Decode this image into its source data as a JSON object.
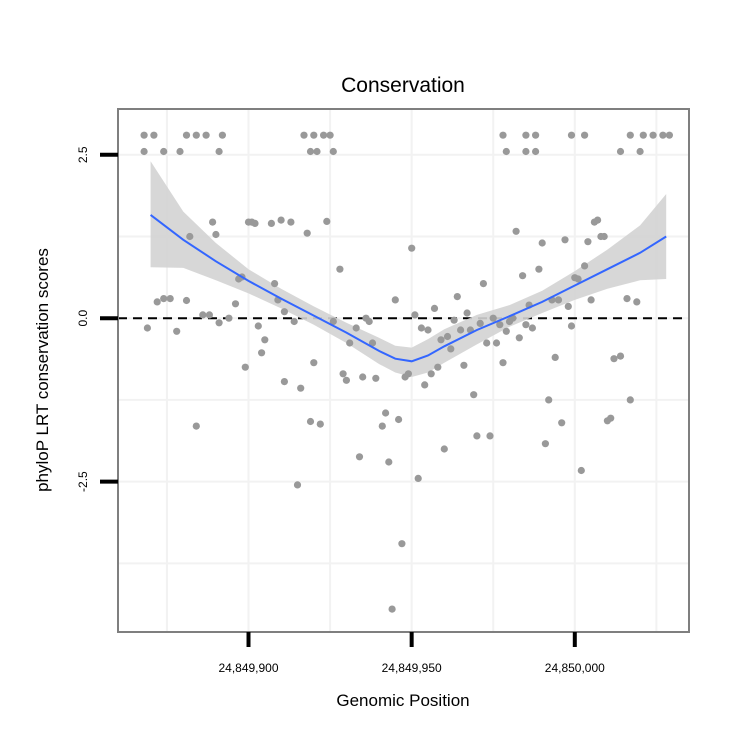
{
  "chart_data": {
    "type": "scatter",
    "title": "Conservation",
    "xlabel": "Genomic Position",
    "ylabel": "phyloP LRT conservation scores",
    "xlim": [
      24849860,
      24850035
    ],
    "ylim": [
      -4.8,
      3.2
    ],
    "x_ticks": [
      {
        "value": 24849900,
        "label": "24,849,900"
      },
      {
        "value": 24849950,
        "label": "24,849,950"
      },
      {
        "value": 24850000,
        "label": "24,850,000"
      }
    ],
    "y_ticks": [
      {
        "value": 2.5,
        "label": "2.5"
      },
      {
        "value": 0.0,
        "label": "0.0"
      },
      {
        "value": -2.5,
        "label": "-2.5"
      }
    ],
    "reference_line": {
      "y": 0.0,
      "style": "dashed"
    },
    "grid": true,
    "colors": {
      "points": "#999999",
      "smooth_line": "#3366ff",
      "confidence_band": "#d3d3d3",
      "panel_border": "#7f7f7f",
      "grid": "#f2f2f2"
    },
    "smooth": {
      "x": [
        24849870,
        24849880,
        24849890,
        24849900,
        24849910,
        24849920,
        24849930,
        24849940,
        24849945,
        24849950,
        24849955,
        24849960,
        24849970,
        24849980,
        24849990,
        24850000,
        24850010,
        24850020,
        24850028
      ],
      "y": [
        1.58,
        1.2,
        0.87,
        0.57,
        0.3,
        0.04,
        -0.22,
        -0.5,
        -0.62,
        -0.66,
        -0.57,
        -0.43,
        -0.18,
        0.03,
        0.25,
        0.5,
        0.75,
        1.0,
        1.25
      ],
      "lower": [
        0.78,
        0.77,
        0.58,
        0.38,
        0.15,
        -0.1,
        -0.38,
        -0.7,
        -0.83,
        -0.9,
        -0.83,
        -0.68,
        -0.4,
        -0.13,
        0.08,
        0.28,
        0.45,
        0.58,
        0.6
      ],
      "upper": [
        2.4,
        1.63,
        1.15,
        0.75,
        0.45,
        0.18,
        -0.07,
        -0.3,
        -0.42,
        -0.45,
        -0.32,
        -0.17,
        0.05,
        0.2,
        0.42,
        0.72,
        1.05,
        1.42,
        1.9
      ]
    },
    "points": [
      [
        24849868,
        2.8
      ],
      [
        24849871,
        2.8
      ],
      [
        24849868,
        2.55
      ],
      [
        24849874,
        2.55
      ],
      [
        24849881,
        2.8
      ],
      [
        24849884,
        2.8
      ],
      [
        24849887,
        2.8
      ],
      [
        24849879,
        2.55
      ],
      [
        24849892,
        2.8
      ],
      [
        24849891,
        2.55
      ],
      [
        24849917,
        2.8
      ],
      [
        24849920,
        2.8
      ],
      [
        24849923,
        2.8
      ],
      [
        24849925,
        2.8
      ],
      [
        24849919,
        2.55
      ],
      [
        24849921,
        2.55
      ],
      [
        24849926,
        2.55
      ],
      [
        24849978,
        2.8
      ],
      [
        24849985,
        2.8
      ],
      [
        24849988,
        2.8
      ],
      [
        24849979,
        2.55
      ],
      [
        24849985,
        2.55
      ],
      [
        24849988,
        2.55
      ],
      [
        24849999,
        2.8
      ],
      [
        24850003,
        2.8
      ],
      [
        24850017,
        2.8
      ],
      [
        24850021,
        2.8
      ],
      [
        24850024,
        2.8
      ],
      [
        24850027,
        2.8
      ],
      [
        24850029,
        2.8
      ],
      [
        24850014,
        2.55
      ],
      [
        24850020,
        2.55
      ],
      [
        24849869,
        -0.15
      ],
      [
        24849872,
        0.25
      ],
      [
        24849874,
        0.3
      ],
      [
        24849876,
        0.3
      ],
      [
        24849878,
        -0.2
      ],
      [
        24849881,
        0.27
      ],
      [
        24849882,
        1.25
      ],
      [
        24849884,
        -1.65
      ],
      [
        24849886,
        0.05
      ],
      [
        24849888,
        0.05
      ],
      [
        24849889,
        1.47
      ],
      [
        24849890,
        1.28
      ],
      [
        24849891,
        -0.07
      ],
      [
        24849894,
        0.0
      ],
      [
        24849896,
        0.22
      ],
      [
        24849897,
        0.6
      ],
      [
        24849898,
        0.63
      ],
      [
        24849899,
        -0.75
      ],
      [
        24849900,
        1.47
      ],
      [
        24849901,
        1.47
      ],
      [
        24849902,
        1.45
      ],
      [
        24849903,
        -0.12
      ],
      [
        24849904,
        -0.53
      ],
      [
        24849905,
        -0.33
      ],
      [
        24849907,
        1.45
      ],
      [
        24849908,
        0.53
      ],
      [
        24849909,
        0.28
      ],
      [
        24849910,
        1.5
      ],
      [
        24849911,
        0.1
      ],
      [
        24849911,
        -0.97
      ],
      [
        24849913,
        1.47
      ],
      [
        24849914,
        -0.05
      ],
      [
        24849915,
        -2.55
      ],
      [
        24849916,
        -1.07
      ],
      [
        24849918,
        1.3
      ],
      [
        24849919,
        -1.58
      ],
      [
        24849920,
        -0.68
      ],
      [
        24849922,
        -1.62
      ],
      [
        24849924,
        1.48
      ],
      [
        24849926,
        -0.05
      ],
      [
        24849928,
        0.75
      ],
      [
        24849929,
        -0.85
      ],
      [
        24849930,
        -0.95
      ],
      [
        24849931,
        -0.38
      ],
      [
        24849933,
        -0.15
      ],
      [
        24849934,
        -2.12
      ],
      [
        24849935,
        -0.9
      ],
      [
        24849936,
        0.0
      ],
      [
        24849937,
        -0.05
      ],
      [
        24849938,
        -0.38
      ],
      [
        24849939,
        -0.92
      ],
      [
        24849941,
        -1.65
      ],
      [
        24849942,
        -1.45
      ],
      [
        24849943,
        -2.2
      ],
      [
        24849944,
        -4.45
      ],
      [
        24849945,
        0.28
      ],
      [
        24849946,
        -1.55
      ],
      [
        24849947,
        -3.45
      ],
      [
        24849948,
        -0.9
      ],
      [
        24849949,
        -0.85
      ],
      [
        24849950,
        1.07
      ],
      [
        24849951,
        0.05
      ],
      [
        24849952,
        -2.45
      ],
      [
        24849953,
        -0.15
      ],
      [
        24849954,
        -1.02
      ],
      [
        24849955,
        -0.18
      ],
      [
        24849956,
        -0.85
      ],
      [
        24849957,
        0.15
      ],
      [
        24849958,
        -0.75
      ],
      [
        24849959,
        -0.33
      ],
      [
        24849960,
        -2.0
      ],
      [
        24849961,
        -0.28
      ],
      [
        24849962,
        -0.47
      ],
      [
        24849963,
        -0.03
      ],
      [
        24849964,
        0.33
      ],
      [
        24849965,
        -0.18
      ],
      [
        24849966,
        -0.72
      ],
      [
        24849967,
        0.08
      ],
      [
        24849968,
        -0.18
      ],
      [
        24849969,
        -1.17
      ],
      [
        24849970,
        -1.8
      ],
      [
        24849971,
        -0.08
      ],
      [
        24849972,
        0.53
      ],
      [
        24849973,
        -0.38
      ],
      [
        24849974,
        -1.8
      ],
      [
        24849975,
        0.0
      ],
      [
        24849976,
        -0.38
      ],
      [
        24849977,
        -0.1
      ],
      [
        24849978,
        -0.68
      ],
      [
        24849979,
        -0.2
      ],
      [
        24849980,
        -0.05
      ],
      [
        24849981,
        0.0
      ],
      [
        24849982,
        1.33
      ],
      [
        24849983,
        -0.3
      ],
      [
        24849984,
        0.65
      ],
      [
        24849985,
        -0.1
      ],
      [
        24849986,
        0.2
      ],
      [
        24849987,
        -0.15
      ],
      [
        24849989,
        0.75
      ],
      [
        24849990,
        1.15
      ],
      [
        24849991,
        -1.92
      ],
      [
        24849992,
        -1.25
      ],
      [
        24849993,
        0.28
      ],
      [
        24849994,
        -0.6
      ],
      [
        24849995,
        0.28
      ],
      [
        24849996,
        -1.6
      ],
      [
        24849997,
        1.2
      ],
      [
        24849998,
        0.18
      ],
      [
        24849999,
        -0.12
      ],
      [
        24850000,
        0.62
      ],
      [
        24850001,
        0.6
      ],
      [
        24850002,
        -2.33
      ],
      [
        24850003,
        0.8
      ],
      [
        24850004,
        1.17
      ],
      [
        24850005,
        0.28
      ],
      [
        24850006,
        1.47
      ],
      [
        24850007,
        1.5
      ],
      [
        24850008,
        1.25
      ],
      [
        24850009,
        1.25
      ],
      [
        24850010,
        -1.57
      ],
      [
        24850011,
        -1.53
      ],
      [
        24850012,
        -0.62
      ],
      [
        24850014,
        -0.58
      ],
      [
        24850016,
        0.3
      ],
      [
        24850017,
        -1.25
      ],
      [
        24850019,
        0.25
      ]
    ]
  }
}
